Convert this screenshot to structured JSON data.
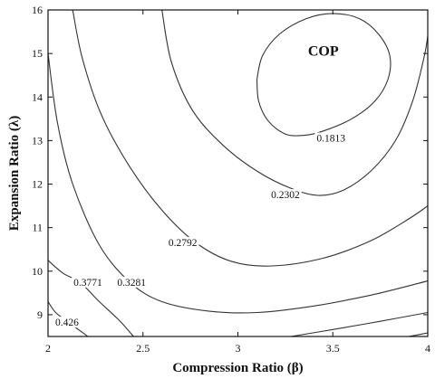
{
  "chart_data": {
    "type": "contour",
    "xlabel": "Compression Ratio (β)",
    "ylabel": "Expansion Ratio (λ)",
    "xlim": [
      2,
      4
    ],
    "ylim": [
      8.5,
      16
    ],
    "xticks": [
      2,
      2.5,
      3,
      3.5,
      4
    ],
    "xtick_labels": [
      "2",
      "2.5",
      "3",
      "3.5",
      "4"
    ],
    "yticks": [
      9,
      10,
      11,
      12,
      13,
      14,
      15,
      16
    ],
    "ytick_labels": [
      "9",
      "10",
      "11",
      "12",
      "13",
      "14",
      "15",
      "16"
    ],
    "grid": false,
    "annotation": "COP",
    "contours": [
      {
        "level": "0.1813",
        "label_at": [
          3.49,
          13.06
        ],
        "points": [
          [
            3.1,
            14.4
          ],
          [
            3.13,
            14.95
          ],
          [
            3.22,
            15.45
          ],
          [
            3.36,
            15.8
          ],
          [
            3.5,
            15.92
          ],
          [
            3.64,
            15.8
          ],
          [
            3.74,
            15.45
          ],
          [
            3.8,
            14.95
          ],
          [
            3.79,
            14.4
          ],
          [
            3.72,
            13.9
          ],
          [
            3.6,
            13.5
          ],
          [
            3.45,
            13.22
          ],
          [
            3.35,
            13.12
          ],
          [
            3.25,
            13.15
          ],
          [
            3.16,
            13.45
          ],
          [
            3.11,
            13.9
          ],
          [
            3.1,
            14.4
          ]
        ]
      },
      {
        "level": "0.2302",
        "label_at": [
          3.25,
          11.76
        ],
        "points": [
          [
            2.6,
            16.0
          ],
          [
            2.65,
            14.8
          ],
          [
            2.76,
            13.7
          ],
          [
            2.92,
            12.9
          ],
          [
            3.1,
            12.3
          ],
          [
            3.28,
            11.9
          ],
          [
            3.42,
            11.74
          ],
          [
            3.55,
            11.85
          ],
          [
            3.7,
            12.3
          ],
          [
            3.83,
            13.0
          ],
          [
            3.92,
            13.9
          ],
          [
            3.98,
            14.9
          ],
          [
            4.0,
            15.4
          ]
        ]
      },
      {
        "level": "0.2792",
        "label_at": [
          2.71,
          10.66
        ],
        "points": [
          [
            2.13,
            16.0
          ],
          [
            2.18,
            14.9
          ],
          [
            2.28,
            13.6
          ],
          [
            2.43,
            12.4
          ],
          [
            2.6,
            11.4
          ],
          [
            2.78,
            10.65
          ],
          [
            2.97,
            10.22
          ],
          [
            3.18,
            10.12
          ],
          [
            3.45,
            10.3
          ],
          [
            3.7,
            10.7
          ],
          [
            3.9,
            11.2
          ],
          [
            4.0,
            11.5
          ]
        ]
      },
      {
        "level": "0.3281",
        "label_at": [
          2.44,
          9.75
        ],
        "points": [
          [
            2.0,
            15.0
          ],
          [
            2.05,
            13.4
          ],
          [
            2.13,
            12.0
          ],
          [
            2.27,
            10.6
          ],
          [
            2.43,
            9.75
          ],
          [
            2.6,
            9.3
          ],
          [
            2.85,
            9.08
          ],
          [
            3.1,
            9.05
          ],
          [
            3.4,
            9.2
          ],
          [
            3.7,
            9.45
          ],
          [
            3.95,
            9.72
          ],
          [
            4.0,
            9.78
          ]
        ]
      },
      {
        "level": "0.3771",
        "label_at": [
          2.21,
          9.75
        ],
        "points": [
          [
            2.0,
            10.25
          ],
          [
            2.08,
            9.95
          ],
          [
            2.17,
            9.74
          ],
          [
            2.27,
            9.3
          ],
          [
            2.38,
            8.85
          ],
          [
            2.45,
            8.5
          ]
        ]
      },
      {
        "level": "0.426",
        "label_at": [
          2.1,
          8.83
        ],
        "points": [
          [
            2.0,
            9.3
          ],
          [
            2.04,
            9.05
          ],
          [
            2.1,
            8.85
          ],
          [
            2.16,
            8.66
          ],
          [
            2.21,
            8.5
          ]
        ]
      },
      {
        "level": "",
        "label_at": null,
        "points": [
          [
            3.28,
            8.5
          ],
          [
            3.5,
            8.66
          ],
          [
            3.75,
            8.85
          ],
          [
            4.0,
            9.05
          ]
        ]
      },
      {
        "level": "",
        "label_at": null,
        "points": [
          [
            3.9,
            8.5
          ],
          [
            4.0,
            8.58
          ]
        ]
      }
    ]
  }
}
